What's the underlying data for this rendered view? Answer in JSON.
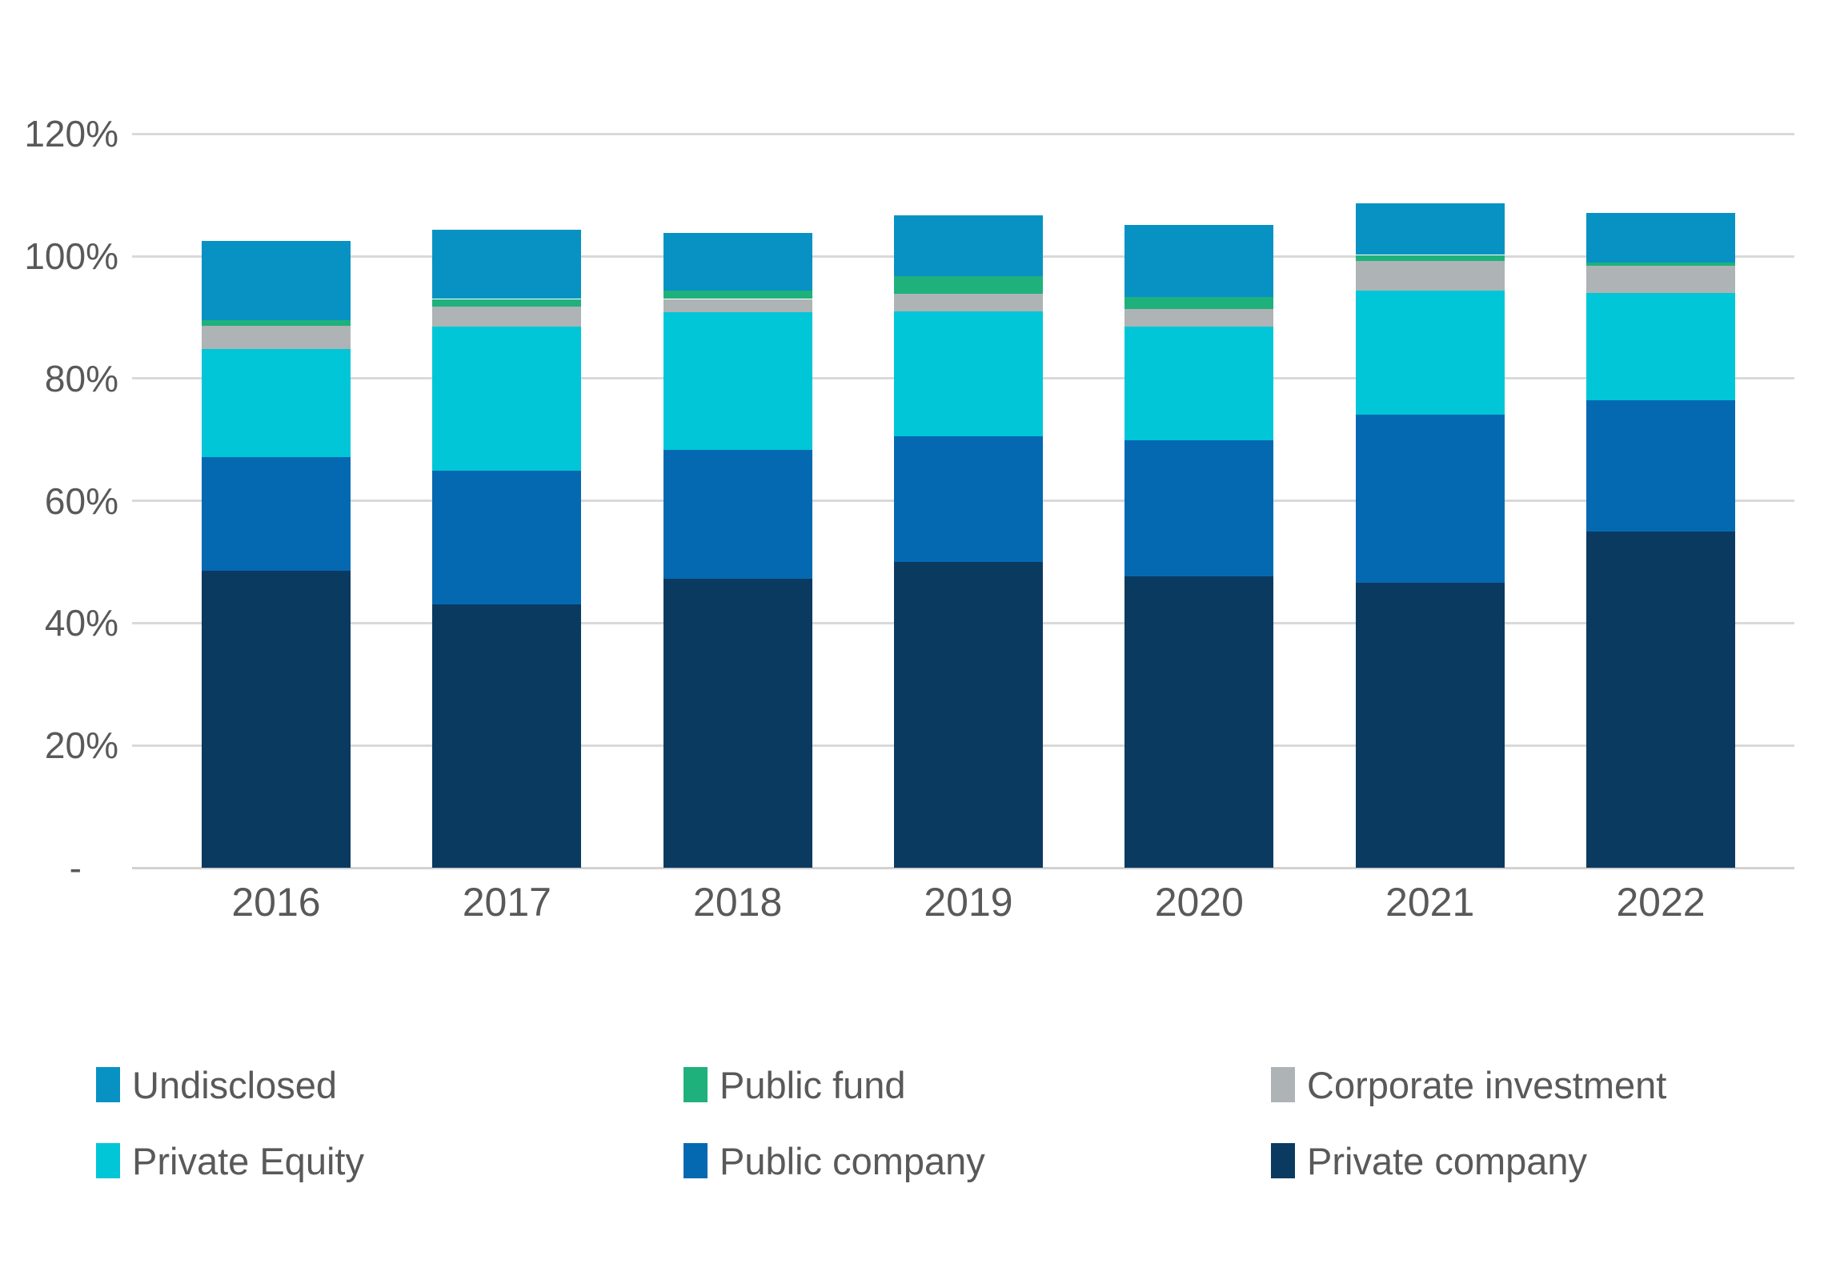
{
  "chart_data": {
    "type": "bar",
    "stacked": true,
    "title": "",
    "xlabel": "",
    "ylabel": "",
    "ylim": [
      0,
      120
    ],
    "grid": true,
    "legend_position": "bottom",
    "categories": [
      "2016",
      "2017",
      "2018",
      "2019",
      "2020",
      "2021",
      "2022"
    ],
    "series": [
      {
        "name": "Private company",
        "color": "#0b3a61",
        "values": [
          48.6,
          43.0,
          47.2,
          50.0,
          47.7,
          46.6,
          55.0
        ]
      },
      {
        "name": "Public company",
        "color": "#0569b2",
        "values": [
          18.6,
          21.9,
          21.1,
          20.6,
          22.2,
          27.5,
          21.5
        ]
      },
      {
        "name": "Private Equity",
        "color": "#00c6d7",
        "values": [
          17.6,
          23.6,
          22.6,
          20.4,
          18.6,
          20.3,
          17.5
        ]
      },
      {
        "name": "Corporate investment",
        "color": "#aeb3b5",
        "values": [
          3.8,
          3.3,
          2.1,
          2.8,
          2.9,
          4.8,
          4.4
        ]
      },
      {
        "name": "Public fund",
        "color": "#1fb17c",
        "values": [
          0.9,
          1.2,
          1.4,
          2.9,
          1.9,
          1.0,
          0.6
        ]
      },
      {
        "name": "Undisclosed",
        "color": "#0892c3",
        "values": [
          13.0,
          11.3,
          9.4,
          10.0,
          11.8,
          8.5,
          8.1
        ]
      }
    ],
    "stack_totals": [
      102.5,
      104.3,
      103.8,
      106.7,
      105.1,
      108.7,
      107.1
    ],
    "y_ticks": [
      {
        "label": "120%",
        "value": 120
      },
      {
        "label": "100%",
        "value": 100
      },
      {
        "label": "80%",
        "value": 80
      },
      {
        "label": "60%",
        "value": 60
      },
      {
        "label": "40%",
        "value": 40
      },
      {
        "label": "20%",
        "value": 20
      },
      {
        "label": "-",
        "value": 0
      }
    ],
    "legend_order": [
      "Undisclosed",
      "Public fund",
      "Corporate investment",
      "Private Equity",
      "Public company",
      "Private company"
    ]
  },
  "colors": {
    "gridline": "#d9d9d9",
    "axis_line": "#d2d2d2",
    "text": "#595959",
    "background": "#ffffff"
  }
}
